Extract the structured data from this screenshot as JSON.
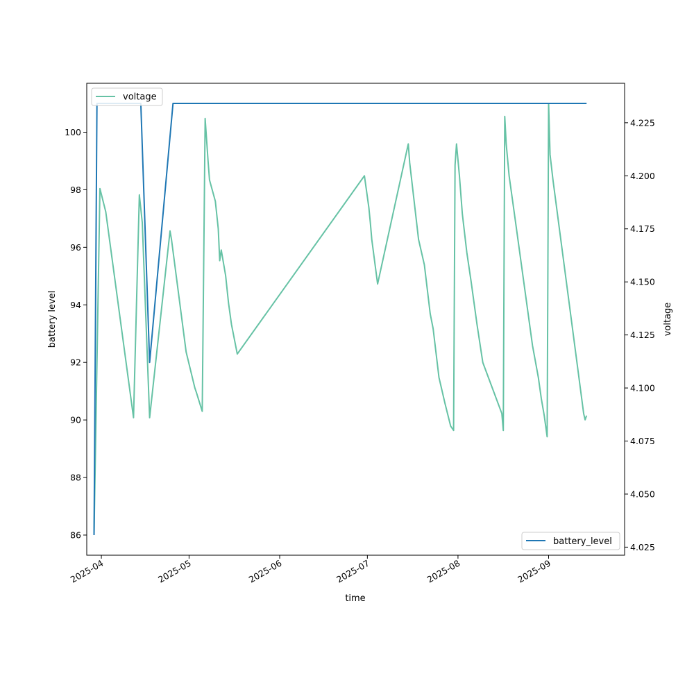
{
  "chart_data": {
    "type": "line",
    "xlabel": "time",
    "ylabel_left": "battery level",
    "ylabel_right": "voltage",
    "x_ticks": [
      "2025-04",
      "2025-05",
      "2025-06",
      "2025-07",
      "2025-08",
      "2025-09"
    ],
    "xlim": [
      "2025-03-27",
      "2025-09-27"
    ],
    "left_axis": {
      "ylim": [
        85.3,
        101.7
      ],
      "ticks": [
        86,
        88,
        90,
        92,
        94,
        96,
        98,
        100
      ]
    },
    "right_axis": {
      "ylim": [
        4.0212,
        4.2436
      ],
      "ticks": [
        "4.025",
        "4.050",
        "4.075",
        "4.100",
        "4.125",
        "4.150",
        "4.175",
        "4.200",
        "4.225"
      ]
    },
    "grid": false,
    "series": [
      {
        "name": "voltage",
        "axis": "right",
        "color": "#66c2a5",
        "legend": "top-left",
        "points": [
          [
            "2025-03-29T12:00",
            4.031
          ],
          [
            "2025-03-31T12:00",
            4.194
          ],
          [
            "2025-04-02T12:00",
            4.183
          ],
          [
            "2025-04-12T00:00",
            4.086
          ],
          [
            "2025-04-14T00:00",
            4.191
          ],
          [
            "2025-04-15T00:00",
            4.178
          ],
          [
            "2025-04-17T12:00",
            4.086
          ],
          [
            "2025-04-24T12:00",
            4.174
          ],
          [
            "2025-04-25T00:00",
            4.17
          ],
          [
            "2025-04-30T00:00",
            4.117
          ],
          [
            "2025-05-03T00:00",
            4.1
          ],
          [
            "2025-05-03T12:00",
            4.098
          ],
          [
            "2025-05-05T12:00",
            4.089
          ],
          [
            "2025-05-06T12:00",
            4.227
          ],
          [
            "2025-05-07T12:00",
            4.207
          ],
          [
            "2025-05-08T00:00",
            4.198
          ],
          [
            "2025-05-10T00:00",
            4.188
          ],
          [
            "2025-05-11T00:00",
            4.175
          ],
          [
            "2025-05-11T12:00",
            4.16
          ],
          [
            "2025-05-12T00:00",
            4.165
          ],
          [
            "2025-05-13T12:00",
            4.153
          ],
          [
            "2025-05-14T12:00",
            4.14
          ],
          [
            "2025-05-15T12:00",
            4.13
          ],
          [
            "2025-05-17T12:00",
            4.116
          ],
          [
            "2025-06-30T00:00",
            4.2
          ],
          [
            "2025-07-01T12:00",
            4.185
          ],
          [
            "2025-07-02T00:00",
            4.178
          ],
          [
            "2025-07-02T12:00",
            4.17
          ],
          [
            "2025-07-04T12:00",
            4.149
          ],
          [
            "2025-07-15T00:00",
            4.215
          ],
          [
            "2025-07-15T12:00",
            4.206
          ],
          [
            "2025-07-18T12:00",
            4.17
          ],
          [
            "2025-07-20T12:00",
            4.158
          ],
          [
            "2025-07-22T12:00",
            4.135
          ],
          [
            "2025-07-23T12:00",
            4.128
          ],
          [
            "2025-07-25T12:00",
            4.105
          ],
          [
            "2025-07-27T12:00",
            4.093
          ],
          [
            "2025-07-29T12:00",
            4.082
          ],
          [
            "2025-07-30T12:00",
            4.08
          ],
          [
            "2025-07-31T00:00",
            4.205
          ],
          [
            "2025-07-31T12:00",
            4.215
          ],
          [
            "2025-08-01T12:00",
            4.2
          ],
          [
            "2025-08-02T12:00",
            4.182
          ],
          [
            "2025-08-04T00:00",
            4.164
          ],
          [
            "2025-08-05T12:00",
            4.15
          ],
          [
            "2025-08-07T12:00",
            4.13
          ],
          [
            "2025-08-09T12:00",
            4.112
          ],
          [
            "2025-08-16T00:00",
            4.088
          ],
          [
            "2025-08-16T12:00",
            4.08
          ],
          [
            "2025-08-17T00:00",
            4.228
          ],
          [
            "2025-08-17T12:00",
            4.215
          ],
          [
            "2025-08-18T12:00",
            4.2
          ],
          [
            "2025-08-20T12:00",
            4.18
          ],
          [
            "2025-08-22T12:00",
            4.16
          ],
          [
            "2025-08-24T12:00",
            4.14
          ],
          [
            "2025-08-26T12:00",
            4.12
          ],
          [
            "2025-08-28T12:00",
            4.105
          ],
          [
            "2025-08-29T12:00",
            4.095
          ],
          [
            "2025-08-30T12:00",
            4.087
          ],
          [
            "2025-08-31T12:00",
            4.077
          ],
          [
            "2025-09-01T00:00",
            4.234
          ],
          [
            "2025-09-01T12:00",
            4.21
          ],
          [
            "2025-09-02T12:00",
            4.198
          ],
          [
            "2025-09-13T00:00",
            4.088
          ],
          [
            "2025-09-13T12:00",
            4.085
          ],
          [
            "2025-09-14T00:00",
            4.087
          ]
        ]
      },
      {
        "name": "battery_level",
        "axis": "left",
        "color": "#1f77b4",
        "legend": "bottom-right",
        "points": [
          [
            "2025-03-29T12:00",
            86
          ],
          [
            "2025-03-30T12:00",
            101
          ],
          [
            "2025-04-14T12:00",
            101
          ],
          [
            "2025-04-17T12:00",
            92
          ],
          [
            "2025-04-25T12:00",
            101
          ],
          [
            "2025-09-14T00:00",
            101
          ]
        ]
      }
    ]
  }
}
